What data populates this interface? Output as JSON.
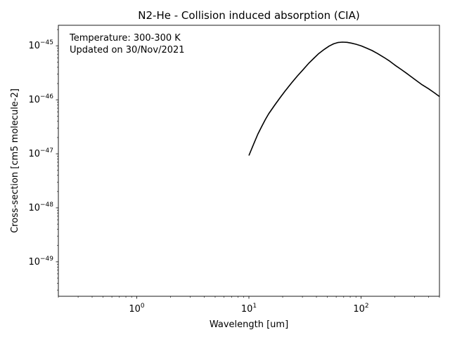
{
  "chart_data": {
    "type": "line",
    "title": "N2-He - Collision induced absorption (CIA)",
    "xlabel": "Wavelength [um]",
    "ylabel": "Cross-section [cm5 molecule-2]",
    "xscale": "log",
    "yscale": "log",
    "xlim": [
      0.2,
      500
    ],
    "ylim": [
      2.3e-50,
      2.4e-45
    ],
    "grid": false,
    "annotation": {
      "line1": "Temperature: 300-300 K",
      "line2": "Updated on 30/Nov/2021"
    },
    "x_ticks": [
      {
        "base": "10",
        "exp": "0",
        "value": 1
      },
      {
        "base": "10",
        "exp": "1",
        "value": 10
      },
      {
        "base": "10",
        "exp": "2",
        "value": 100
      }
    ],
    "y_ticks": [
      {
        "base": "10",
        "exp": "−45",
        "value": 1e-45
      },
      {
        "base": "10",
        "exp": "−46",
        "value": 1e-46
      },
      {
        "base": "10",
        "exp": "−47",
        "value": 1e-47
      },
      {
        "base": "10",
        "exp": "−48",
        "value": 1e-48
      },
      {
        "base": "10",
        "exp": "−49",
        "value": 1e-49
      }
    ],
    "series": [
      {
        "color": "#000000",
        "x": [
          10,
          11,
          12,
          13,
          14,
          15,
          17,
          19,
          21,
          24,
          27,
          30,
          34,
          38,
          42,
          47,
          52,
          57,
          62,
          68,
          75,
          82,
          90,
          100,
          110,
          125,
          140,
          160,
          180,
          200,
          230,
          260,
          300,
          350,
          400,
          450,
          500
        ],
        "y": [
          9.3e-48,
          1.5e-47,
          2.3e-47,
          3.2e-47,
          4.3e-47,
          5.5e-47,
          8e-47,
          1.1e-46,
          1.45e-46,
          2.05e-46,
          2.75e-46,
          3.5e-46,
          4.7e-46,
          5.9e-46,
          7.2e-46,
          8.6e-46,
          9.9e-46,
          1.09e-45,
          1.15e-45,
          1.17e-45,
          1.16e-45,
          1.12e-45,
          1.07e-45,
          1e-45,
          9.2e-46,
          8.2e-46,
          7.2e-46,
          6.1e-46,
          5.2e-46,
          4.4e-46,
          3.6e-46,
          3e-46,
          2.4e-46,
          1.9e-46,
          1.6e-46,
          1.35e-46,
          1.15e-46
        ]
      }
    ]
  }
}
